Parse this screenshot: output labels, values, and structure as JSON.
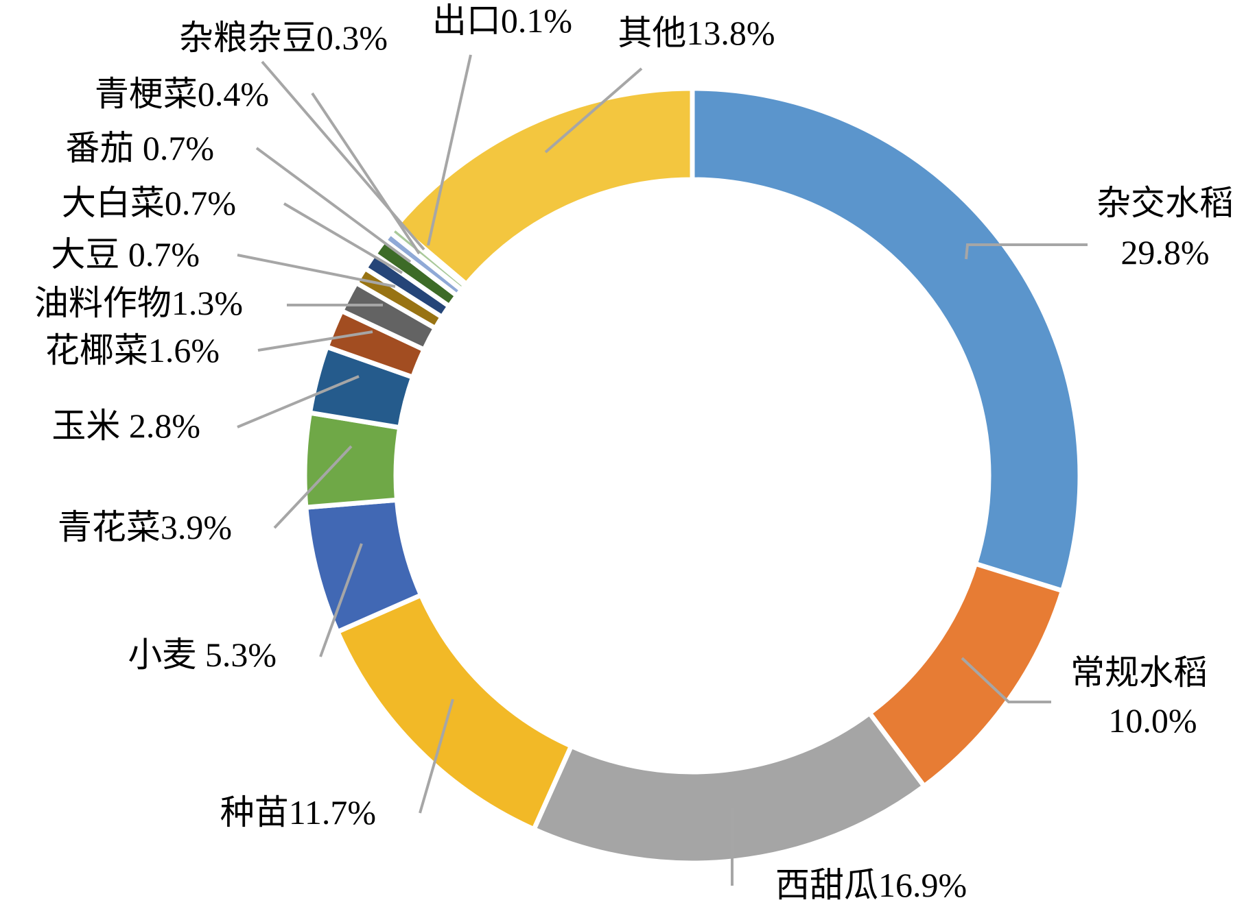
{
  "chart_data": {
    "type": "donut",
    "title": "",
    "slices": [
      {
        "name": "杂交水稻",
        "value": 29.8,
        "pct": "29.8%",
        "color": "#5b95cc"
      },
      {
        "name": "常规水稻",
        "value": 10.0,
        "pct": "10.0%",
        "color": "#e77c34"
      },
      {
        "name": "西甜瓜",
        "value": 16.9,
        "pct": "16.9%",
        "color": "#a5a5a5"
      },
      {
        "name": "种苗",
        "value": 11.7,
        "pct": "11.7%",
        "color": "#f2b927"
      },
      {
        "name": "小麦",
        "value": 5.3,
        "pct": "5.3%",
        "color": "#4168b4"
      },
      {
        "name": "青花菜",
        "value": 3.9,
        "pct": "3.9%",
        "color": "#6fa847"
      },
      {
        "name": "玉米",
        "value": 2.8,
        "pct": "2.8%",
        "color": "#255b8c"
      },
      {
        "name": "花椰菜",
        "value": 1.6,
        "pct": "1.6%",
        "color": "#a24d21"
      },
      {
        "name": "油料作物",
        "value": 1.3,
        "pct": "1.3%",
        "color": "#636363"
      },
      {
        "name": "大豆",
        "value": 0.7,
        "pct": "0.7%",
        "color": "#987313"
      },
      {
        "name": "大白菜",
        "value": 0.7,
        "pct": "0.7%",
        "color": "#254578"
      },
      {
        "name": "番茄",
        "value": 0.7,
        "pct": "0.7%",
        "color": "#3d6b27"
      },
      {
        "name": "青梗菜",
        "value": 0.4,
        "pct": "0.4%",
        "color": "#8fa9d6"
      },
      {
        "name": "杂粮杂豆",
        "value": 0.3,
        "pct": "0.3%",
        "color": "#a9c99a"
      },
      {
        "name": "出口",
        "value": 0.1,
        "pct": "0.1%",
        "color": "#9dc3e6"
      },
      {
        "name": "其他",
        "value": 13.8,
        "pct": "13.8%",
        "color": "#f3c63f"
      }
    ],
    "labels": [
      {
        "line1": "杂交水稻",
        "line2": "29.8%"
      },
      {
        "line1": "常规水稻",
        "line2": "10.0%"
      },
      {
        "line1": "西甜瓜16.9%"
      },
      {
        "line1": "种苗11.7%"
      },
      {
        "line1": "小麦 5.3%"
      },
      {
        "line1": "青花菜3.9%"
      },
      {
        "line1": "玉米 2.8%"
      },
      {
        "line1": "花椰菜1.6%"
      },
      {
        "line1": "油料作物1.3%"
      },
      {
        "line1": "大豆 0.7%"
      },
      {
        "line1": "大白菜0.7%"
      },
      {
        "line1": "番茄 0.7%"
      },
      {
        "line1": "青梗菜0.4%"
      },
      {
        "line1": "杂粮杂豆0.3%"
      },
      {
        "line1": "出口0.1%"
      },
      {
        "line1": "其他13.8%"
      }
    ]
  }
}
